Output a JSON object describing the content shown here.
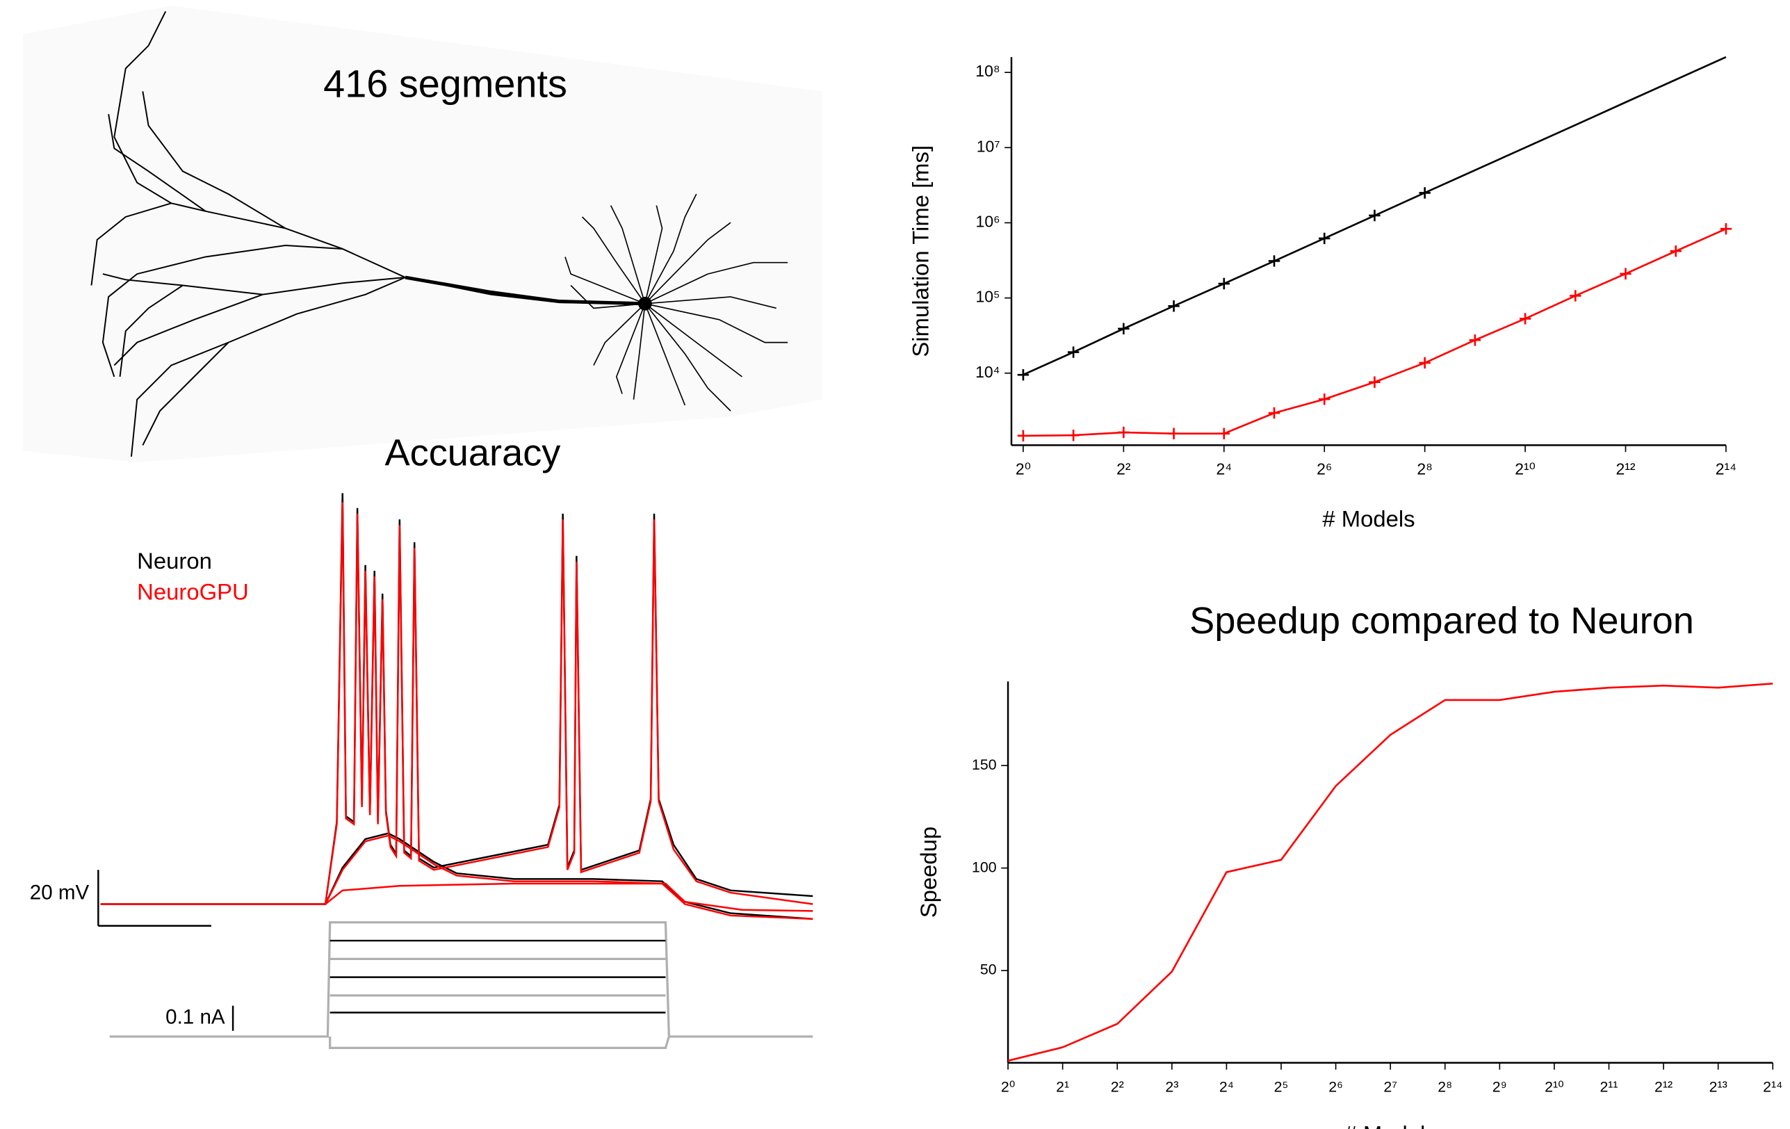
{
  "panels": {
    "morphology_label": "416 segments",
    "accuracy_title": "Accuaracy",
    "legend": [
      "Neuron",
      "NeuroGPU"
    ],
    "voltage_scale": "20 mV",
    "current_scale": "0.1 nA"
  },
  "chart_data": [
    {
      "type": "line",
      "ylabel": "Simulation Time [ms]",
      "xlabel": "# Models",
      "xscale": "log2",
      "yscale": "log10",
      "x": [
        1,
        2,
        4,
        8,
        16,
        32,
        64,
        128,
        256,
        512,
        1024,
        2048,
        4096,
        8192,
        16384
      ],
      "xlim": [
        0.85,
        16384
      ],
      "xticks": [
        {
          "value": 1,
          "label": "2⁰"
        },
        {
          "value": 4,
          "label": "2²"
        },
        {
          "value": 16,
          "label": "2⁴"
        },
        {
          "value": 64,
          "label": "2⁶"
        },
        {
          "value": 256,
          "label": "2⁸"
        },
        {
          "value": 1024,
          "label": "2¹⁰"
        },
        {
          "value": 4096,
          "label": "2¹²"
        },
        {
          "value": 16384,
          "label": "2¹⁴"
        }
      ],
      "ylim": [
        1100,
        160000000
      ],
      "yticks": [
        {
          "value": 10000,
          "label": "10⁴"
        },
        {
          "value": 100000,
          "label": "10⁵"
        },
        {
          "value": 1000000,
          "label": "10⁶"
        },
        {
          "value": 10000000,
          "label": "10⁷"
        },
        {
          "value": 100000000,
          "label": "10⁸"
        }
      ],
      "series": [
        {
          "color": "#000000",
          "marker": true,
          "values": [
            9500,
            19000,
            39000,
            78000,
            155000,
            310000,
            620000,
            1250000,
            2500000,
            null,
            null,
            null,
            null,
            null,
            null
          ]
        },
        {
          "color": "#000000",
          "marker": false,
          "values": [
            null,
            null,
            null,
            null,
            null,
            null,
            null,
            null,
            2500000,
            5000000,
            10000000,
            20000000,
            40000000,
            80000000,
            160000000
          ]
        },
        {
          "color": "#ff0000",
          "marker": true,
          "values": [
            1470,
            1490,
            1630,
            1570,
            1570,
            2950,
            4500,
            7600,
            13700,
            27500,
            53000,
            107000,
            210000,
            420000,
            830000
          ]
        }
      ]
    },
    {
      "type": "line",
      "title": "Speedup compared to Neuron",
      "ylabel": "Speedup",
      "xlabel": "# Models",
      "xscale": "log2",
      "x": [
        1,
        2,
        4,
        8,
        16,
        32,
        64,
        128,
        256,
        512,
        1024,
        2048,
        4096,
        8192,
        16384
      ],
      "xlim": [
        1,
        16384
      ],
      "xticks": [
        {
          "value": 1,
          "label": "2⁰"
        },
        {
          "value": 2,
          "label": "2¹"
        },
        {
          "value": 4,
          "label": "2²"
        },
        {
          "value": 8,
          "label": "2³"
        },
        {
          "value": 16,
          "label": "2⁴"
        },
        {
          "value": 32,
          "label": "2⁵"
        },
        {
          "value": 64,
          "label": "2⁶"
        },
        {
          "value": 128,
          "label": "2⁷"
        },
        {
          "value": 256,
          "label": "2⁸"
        },
        {
          "value": 512,
          "label": "2⁹"
        },
        {
          "value": 1024,
          "label": "2¹⁰"
        },
        {
          "value": 2048,
          "label": "2¹¹"
        },
        {
          "value": 4096,
          "label": "2¹²"
        },
        {
          "value": 8192,
          "label": "2¹³"
        },
        {
          "value": 16384,
          "label": "2¹⁴"
        }
      ],
      "ylim": [
        5,
        191
      ],
      "yticks": [
        50,
        100,
        150
      ],
      "series": [
        {
          "color": "#ff0000",
          "marker": false,
          "values": [
            6,
            12.6,
            24,
            49.5,
            98,
            104,
            140,
            165,
            182,
            182,
            186,
            188,
            189,
            188,
            190
          ]
        }
      ]
    }
  ]
}
